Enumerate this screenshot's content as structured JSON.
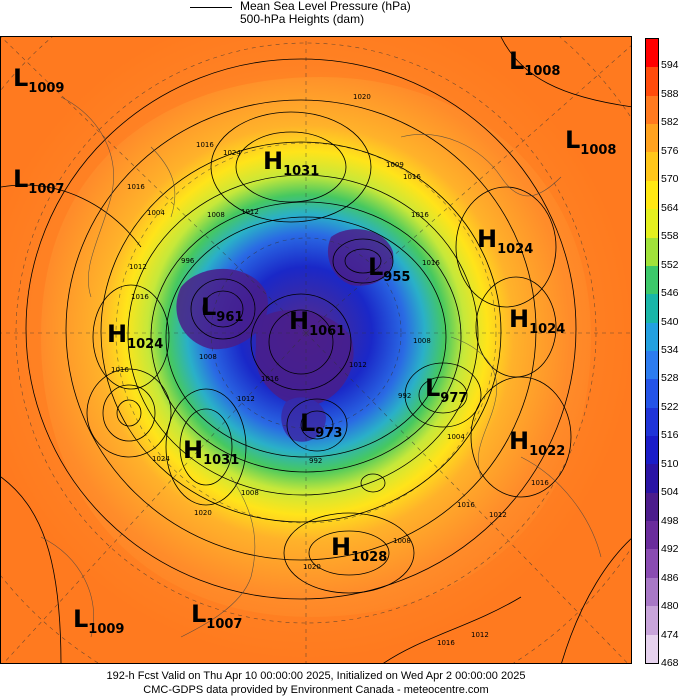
{
  "legend": {
    "mslp_label": "Mean Sea Level Pressure (hPa)",
    "heights_label": "500-hPa Heights (dam)"
  },
  "pressure_systems": [
    {
      "type": "L",
      "value": "1009"
    },
    {
      "type": "L",
      "value": "1008"
    },
    {
      "type": "L",
      "value": "1008"
    },
    {
      "type": "L",
      "value": "1007"
    },
    {
      "type": "H",
      "value": "1031"
    },
    {
      "type": "H",
      "value": "1024"
    },
    {
      "type": "L",
      "value": "955"
    },
    {
      "type": "H",
      "value": "1024"
    },
    {
      "type": "L",
      "value": "961"
    },
    {
      "type": "H",
      "value": "1061"
    },
    {
      "type": "H",
      "value": "1024"
    },
    {
      "type": "L",
      "value": "977"
    },
    {
      "type": "L",
      "value": "973"
    },
    {
      "type": "H",
      "value": "1031"
    },
    {
      "type": "H",
      "value": "1022"
    },
    {
      "type": "H",
      "value": "1028"
    },
    {
      "type": "L",
      "value": "1009"
    },
    {
      "type": "L",
      "value": "1007"
    }
  ],
  "isobar_labels": [
    "1020",
    "1016",
    "1024",
    "1009",
    "1016",
    "1016",
    "1004",
    "1008",
    "1012",
    "1016",
    "1012",
    "1016",
    "996",
    "1008",
    "1012",
    "1016",
    "1012",
    "1008",
    "992",
    "1016",
    "1004",
    "1024",
    "1020",
    "1008",
    "1016",
    "992",
    "1016",
    "1012",
    "1016",
    "1020",
    "1016",
    "1012",
    "1008"
  ],
  "colorbar": {
    "labels": [
      "594",
      "588",
      "582",
      "576",
      "570",
      "564",
      "558",
      "552",
      "546",
      "540",
      "534",
      "528",
      "522",
      "516",
      "510",
      "504",
      "498",
      "492",
      "486",
      "480",
      "474",
      "468"
    ],
    "colors": [
      "#ff0000",
      "#ff4c0c",
      "#ff7a1f",
      "#ffa21f",
      "#ffc61a",
      "#ffe813",
      "#e4f01f",
      "#a0e23a",
      "#3cc86a",
      "#19b6a8",
      "#22a0e0",
      "#2c7cf0",
      "#2454e8",
      "#1f34d8",
      "#1a1cc8",
      "#2a14a4",
      "#4c1c8c",
      "#6a2c9c",
      "#8a4cb2",
      "#a878c6",
      "#c8a4da",
      "#e6d2ee"
    ]
  },
  "footer": {
    "line1": "192-h Fcst Valid on Thu Apr 10 00:00:00 2025, Initialized on Wed Apr  2 00:00:00 2025",
    "line2": "CMC-GDPS data provided by Environment Canada - meteocentre.com"
  }
}
